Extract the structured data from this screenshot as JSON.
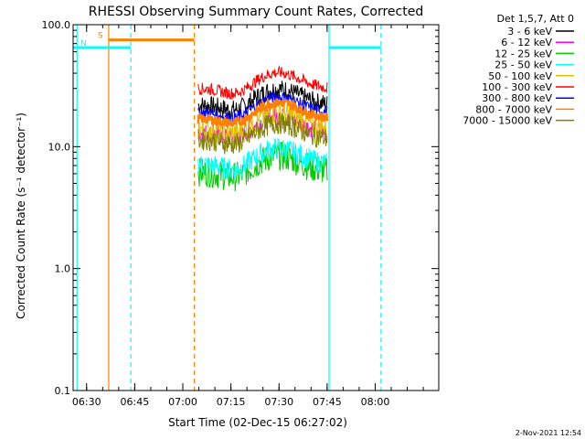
{
  "chart_data": {
    "type": "line",
    "title": "RHESSI Observing Summary Count Rates, Corrected",
    "ylabel": "Corrected Count Rate (s⁻¹ detector⁻¹)",
    "xlabel": "Start Time (02-Dec-15 06:27:02)",
    "footer": "2-Nov-2021 12:54",
    "y_scale": "log",
    "ylim": [
      0.1,
      100.0
    ],
    "y_ticks": [
      {
        "value": 0.1,
        "label": "0.1"
      },
      {
        "value": 1.0,
        "label": "1.0"
      },
      {
        "value": 10.0,
        "label": "10.0"
      },
      {
        "value": 100.0,
        "label": "100.0"
      }
    ],
    "xlim_minutes": [
      6.43,
      8.33
    ],
    "x_ticks": [
      {
        "value": 6.5,
        "label": "06:30"
      },
      {
        "value": 6.75,
        "label": "06:45"
      },
      {
        "value": 7.0,
        "label": "07:00"
      },
      {
        "value": 7.25,
        "label": "07:15"
      },
      {
        "value": 7.5,
        "label": "07:30"
      },
      {
        "value": 7.75,
        "label": "07:45"
      },
      {
        "value": 8.0,
        "label": "08:00"
      }
    ],
    "legend_header": "Det 1,5,7, Att 0",
    "legend_placement": "top-right, outside plot",
    "series": [
      {
        "name": "3 - 6 keV",
        "color": "#000000",
        "start": 7.08,
        "end": 7.75,
        "base": 22,
        "noise": 0.08
      },
      {
        "name": "6 - 12 keV",
        "color": "#ff00ff",
        "start": 7.08,
        "end": 7.75,
        "base": 13,
        "noise": 0.08
      },
      {
        "name": "12 - 25 keV",
        "color": "#00cc00",
        "start": 7.08,
        "end": 7.75,
        "base": 6.2,
        "noise": 0.12
      },
      {
        "name": "25 - 50 keV",
        "color": "#00ffff",
        "start": 7.08,
        "end": 7.75,
        "base": 7.2,
        "noise": 0.09
      },
      {
        "name": "50 - 100 keV",
        "color": "#e0c000",
        "start": 7.08,
        "end": 7.75,
        "base": 14,
        "noise": 0.1
      },
      {
        "name": "100 - 300 keV",
        "color": "#ff0000",
        "start": 7.08,
        "end": 7.75,
        "base": 30,
        "noise": 0.05
      },
      {
        "name": "300 - 800 keV",
        "color": "#0000ff",
        "start": 7.08,
        "end": 7.75,
        "base": 19,
        "noise": 0.05
      },
      {
        "name": "800 - 7000 keV",
        "color": "#ff8000",
        "start": 7.08,
        "end": 7.75,
        "base": 17,
        "noise": 0.04
      },
      {
        "name": "7000 - 15000 keV",
        "color": "#808000",
        "start": 7.08,
        "end": 7.75,
        "base": 11.5,
        "noise": 0.09
      }
    ],
    "flags": [
      {
        "label": "S",
        "color": "#ff8000",
        "from": 6.615,
        "to": 7.06,
        "level": 75,
        "style": "solid-bar"
      },
      {
        "label": "N",
        "color": "#00ffff",
        "from": 6.43,
        "to": 6.73,
        "level": 65,
        "style": "solid-bar"
      },
      {
        "label": "",
        "color": "#00ffff",
        "from": 7.76,
        "to": 8.03,
        "level": 65,
        "style": "solid-bar"
      }
    ],
    "vlines": [
      {
        "x": 6.45,
        "color": "#00ffff",
        "dash": false
      },
      {
        "x": 6.615,
        "color": "#ff8000",
        "dash": false
      },
      {
        "x": 6.73,
        "color": "#00ffff",
        "dash": true
      },
      {
        "x": 7.06,
        "color": "#ff8000",
        "dash": true
      },
      {
        "x": 7.76,
        "color": "#00ffff",
        "dash": false
      },
      {
        "x": 8.03,
        "color": "#00ffff",
        "dash": true
      }
    ],
    "grid": false
  }
}
